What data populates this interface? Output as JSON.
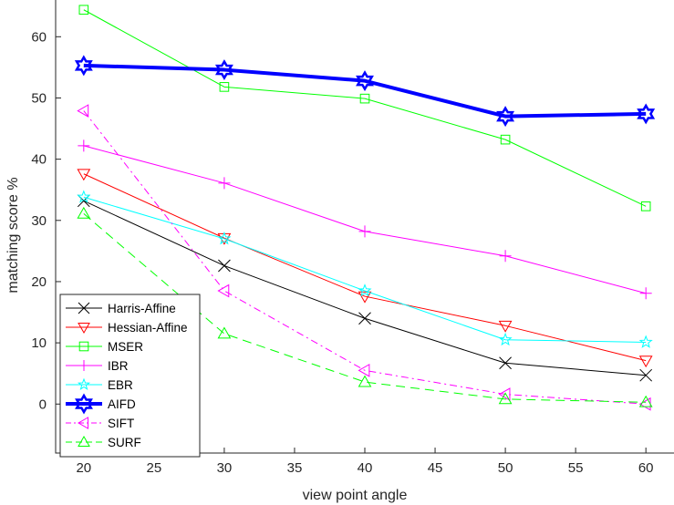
{
  "chart_data": {
    "type": "line",
    "title": "",
    "xlabel": "view point angle",
    "ylabel": "matching score %",
    "xlim": [
      18,
      62
    ],
    "ylim": [
      -8,
      66
    ],
    "xticks": [
      20,
      25,
      30,
      35,
      40,
      45,
      50,
      55,
      60
    ],
    "yticks": [
      0,
      10,
      20,
      30,
      40,
      50,
      60
    ],
    "grid": false,
    "legend_position": "bottom-left",
    "x": [
      20,
      30,
      40,
      50,
      60
    ],
    "series": [
      {
        "name": "Harris-Affine",
        "values": [
          33.2,
          22.6,
          14.0,
          6.7,
          4.7
        ],
        "color": "#000000",
        "marker": "x",
        "dash": "solid",
        "width": 1
      },
      {
        "name": "Hessian-Affine",
        "values": [
          37.6,
          27.1,
          17.6,
          12.8,
          7.1
        ],
        "color": "#ff0000",
        "marker": "triangle-down",
        "dash": "solid",
        "width": 1
      },
      {
        "name": "MSER",
        "values": [
          64.4,
          51.8,
          49.9,
          43.2,
          32.3
        ],
        "color": "#00ff00",
        "marker": "square",
        "dash": "solid",
        "width": 1
      },
      {
        "name": "IBR",
        "values": [
          42.2,
          36.1,
          28.2,
          24.2,
          18.1
        ],
        "color": "#ff00ff",
        "marker": "plus",
        "dash": "solid",
        "width": 1
      },
      {
        "name": "EBR",
        "values": [
          33.8,
          27.0,
          18.5,
          10.5,
          10.1
        ],
        "color": "#00ffff",
        "marker": "star",
        "dash": "solid",
        "width": 1
      },
      {
        "name": "AIFD",
        "values": [
          55.3,
          54.6,
          52.8,
          47.0,
          47.4
        ],
        "color": "#0000ff",
        "marker": "hexagram",
        "dash": "solid",
        "width": 4
      },
      {
        "name": "SIFT",
        "values": [
          47.9,
          18.5,
          5.5,
          1.6,
          0.0
        ],
        "color": "#ff00ff",
        "marker": "triangle-left",
        "dash": "dashdot",
        "width": 1
      },
      {
        "name": "SURF",
        "values": [
          31.1,
          11.5,
          3.6,
          0.8,
          0.3
        ],
        "color": "#00ff00",
        "marker": "triangle-up",
        "dash": "dashed",
        "width": 1
      }
    ]
  }
}
